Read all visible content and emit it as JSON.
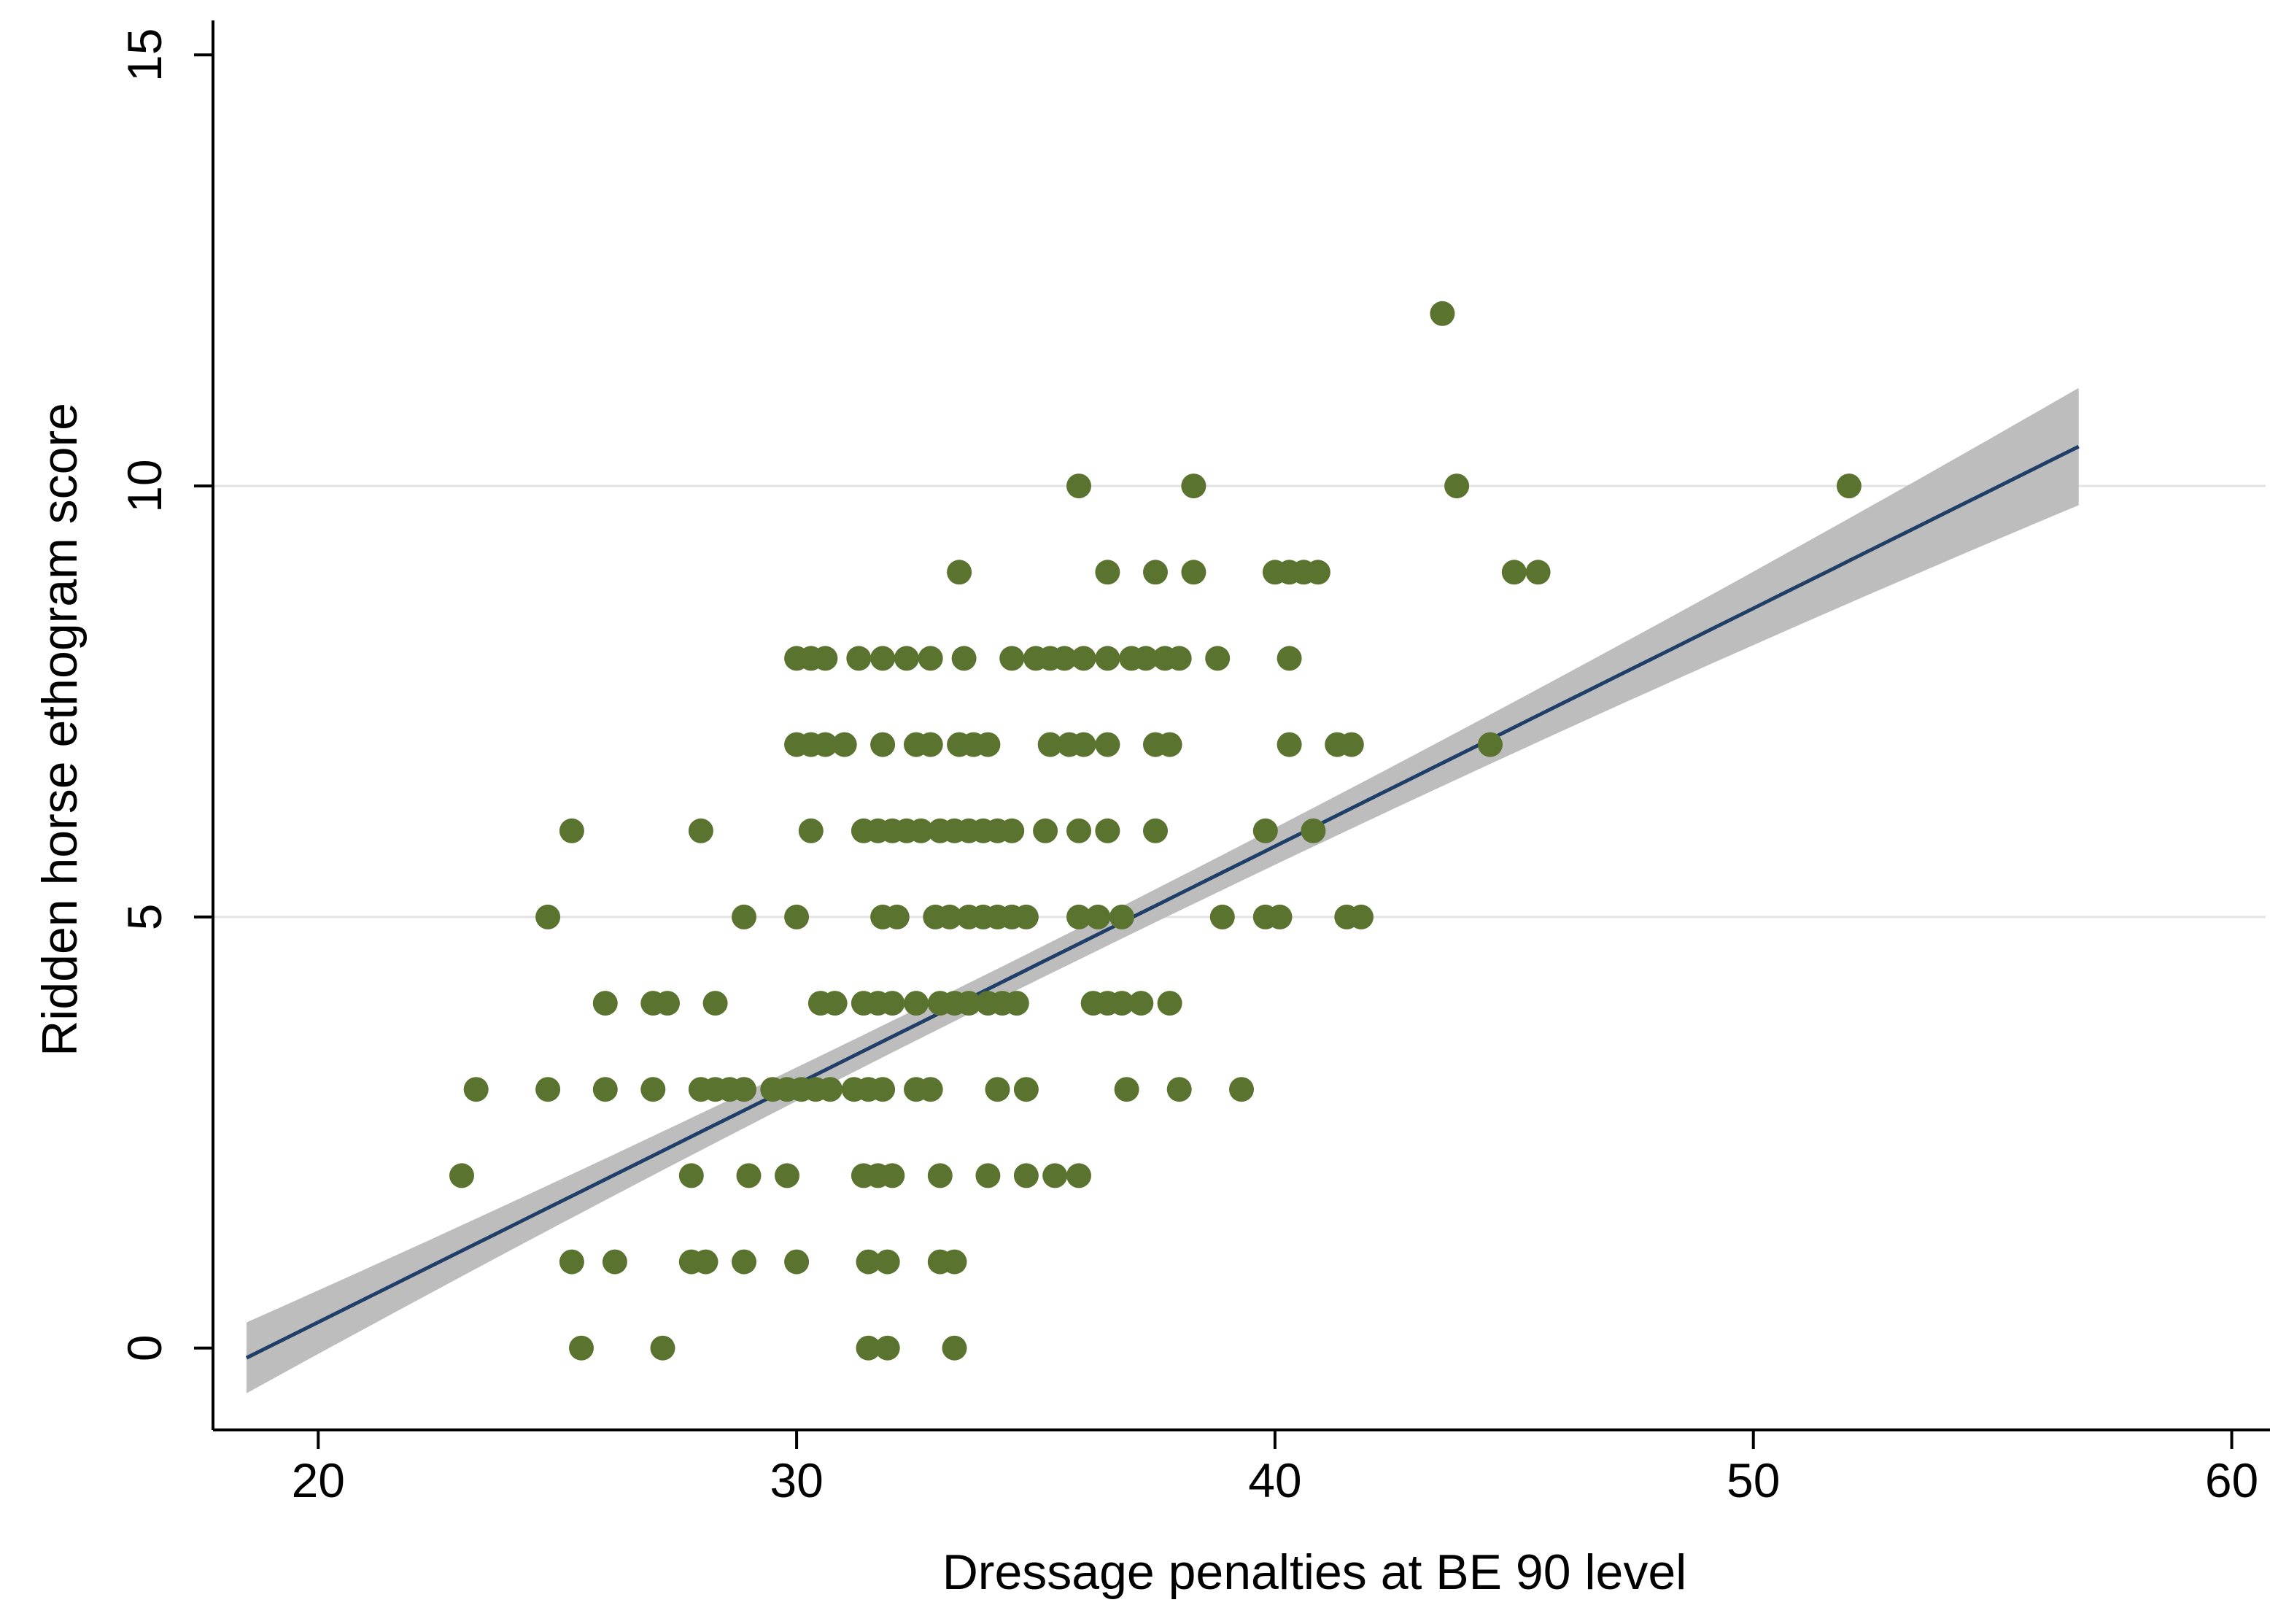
{
  "chart_data": {
    "type": "scatter",
    "title": "",
    "xlabel": "Dressage penalties at BE 90 level",
    "ylabel": "Ridden horse ethogram score",
    "xlim": [
      17.8,
      60.8
    ],
    "ylim": [
      -0.95,
      15.4
    ],
    "xticks": [
      20,
      30,
      40,
      50,
      60
    ],
    "yticks": [
      0,
      5,
      10,
      15
    ],
    "ygrid": [
      5,
      10
    ],
    "grid": true,
    "legend": "none",
    "colors": {
      "points": "#5a7430",
      "fit_line": "#1f3f68",
      "confidence_band": "#bdbdbd",
      "grid": "#e3e3e3",
      "axis": "#000000"
    },
    "fit": {
      "type": "linear",
      "x_range": [
        18.5,
        56.8
      ],
      "intercept": -5.22,
      "slope": 0.276,
      "ci_halfwidth_at_ends": 0.68,
      "ci_halfwidth_at_center": 0.18,
      "ci_center_x": 34
    },
    "points": [
      {
        "x": 25.5,
        "y": 0
      },
      {
        "x": 27.2,
        "y": 0
      },
      {
        "x": 31.5,
        "y": 0
      },
      {
        "x": 31.9,
        "y": 0
      },
      {
        "x": 33.3,
        "y": 0
      },
      {
        "x": 25.3,
        "y": 1
      },
      {
        "x": 26.2,
        "y": 1
      },
      {
        "x": 27.8,
        "y": 1
      },
      {
        "x": 28.1,
        "y": 1
      },
      {
        "x": 28.9,
        "y": 1
      },
      {
        "x": 30.0,
        "y": 1
      },
      {
        "x": 31.5,
        "y": 1
      },
      {
        "x": 31.9,
        "y": 1
      },
      {
        "x": 33.0,
        "y": 1
      },
      {
        "x": 33.3,
        "y": 1
      },
      {
        "x": 23.0,
        "y": 2
      },
      {
        "x": 27.8,
        "y": 2
      },
      {
        "x": 29.0,
        "y": 2
      },
      {
        "x": 29.8,
        "y": 2
      },
      {
        "x": 31.4,
        "y": 2
      },
      {
        "x": 31.7,
        "y": 2
      },
      {
        "x": 32.0,
        "y": 2
      },
      {
        "x": 33.0,
        "y": 2
      },
      {
        "x": 34.0,
        "y": 2
      },
      {
        "x": 34.8,
        "y": 2
      },
      {
        "x": 35.4,
        "y": 2
      },
      {
        "x": 35.9,
        "y": 2
      },
      {
        "x": 23.3,
        "y": 3
      },
      {
        "x": 24.8,
        "y": 3
      },
      {
        "x": 26.0,
        "y": 3
      },
      {
        "x": 27.0,
        "y": 3
      },
      {
        "x": 28.0,
        "y": 3
      },
      {
        "x": 28.3,
        "y": 3
      },
      {
        "x": 28.6,
        "y": 3
      },
      {
        "x": 28.9,
        "y": 3
      },
      {
        "x": 29.5,
        "y": 3
      },
      {
        "x": 29.8,
        "y": 3
      },
      {
        "x": 30.1,
        "y": 3
      },
      {
        "x": 30.4,
        "y": 3
      },
      {
        "x": 30.7,
        "y": 3
      },
      {
        "x": 31.2,
        "y": 3
      },
      {
        "x": 31.5,
        "y": 3
      },
      {
        "x": 31.8,
        "y": 3
      },
      {
        "x": 32.5,
        "y": 3
      },
      {
        "x": 32.8,
        "y": 3
      },
      {
        "x": 34.2,
        "y": 3
      },
      {
        "x": 34.8,
        "y": 3
      },
      {
        "x": 36.9,
        "y": 3
      },
      {
        "x": 38.0,
        "y": 3
      },
      {
        "x": 39.3,
        "y": 3
      },
      {
        "x": 26.0,
        "y": 4
      },
      {
        "x": 27.0,
        "y": 4
      },
      {
        "x": 27.3,
        "y": 4
      },
      {
        "x": 28.3,
        "y": 4
      },
      {
        "x": 30.5,
        "y": 4
      },
      {
        "x": 30.8,
        "y": 4
      },
      {
        "x": 31.4,
        "y": 4
      },
      {
        "x": 31.7,
        "y": 4
      },
      {
        "x": 32.0,
        "y": 4
      },
      {
        "x": 32.5,
        "y": 4
      },
      {
        "x": 33.0,
        "y": 4
      },
      {
        "x": 33.3,
        "y": 4
      },
      {
        "x": 33.6,
        "y": 4
      },
      {
        "x": 34.0,
        "y": 4
      },
      {
        "x": 34.3,
        "y": 4
      },
      {
        "x": 34.6,
        "y": 4
      },
      {
        "x": 36.2,
        "y": 4
      },
      {
        "x": 36.5,
        "y": 4
      },
      {
        "x": 36.8,
        "y": 4
      },
      {
        "x": 37.2,
        "y": 4
      },
      {
        "x": 37.8,
        "y": 4
      },
      {
        "x": 24.8,
        "y": 5
      },
      {
        "x": 28.9,
        "y": 5
      },
      {
        "x": 30.0,
        "y": 5
      },
      {
        "x": 31.8,
        "y": 5
      },
      {
        "x": 32.1,
        "y": 5
      },
      {
        "x": 32.9,
        "y": 5
      },
      {
        "x": 33.2,
        "y": 5
      },
      {
        "x": 33.6,
        "y": 5
      },
      {
        "x": 33.9,
        "y": 5
      },
      {
        "x": 34.2,
        "y": 5
      },
      {
        "x": 34.5,
        "y": 5
      },
      {
        "x": 34.8,
        "y": 5
      },
      {
        "x": 35.9,
        "y": 5
      },
      {
        "x": 36.3,
        "y": 5
      },
      {
        "x": 36.8,
        "y": 5
      },
      {
        "x": 38.9,
        "y": 5
      },
      {
        "x": 39.8,
        "y": 5
      },
      {
        "x": 40.1,
        "y": 5
      },
      {
        "x": 41.5,
        "y": 5
      },
      {
        "x": 41.8,
        "y": 5
      },
      {
        "x": 25.3,
        "y": 6
      },
      {
        "x": 28.0,
        "y": 6
      },
      {
        "x": 30.3,
        "y": 6
      },
      {
        "x": 31.4,
        "y": 6
      },
      {
        "x": 31.7,
        "y": 6
      },
      {
        "x": 32.0,
        "y": 6
      },
      {
        "x": 32.3,
        "y": 6
      },
      {
        "x": 32.6,
        "y": 6
      },
      {
        "x": 33.0,
        "y": 6
      },
      {
        "x": 33.3,
        "y": 6
      },
      {
        "x": 33.6,
        "y": 6
      },
      {
        "x": 33.9,
        "y": 6
      },
      {
        "x": 34.2,
        "y": 6
      },
      {
        "x": 34.5,
        "y": 6
      },
      {
        "x": 35.2,
        "y": 6
      },
      {
        "x": 35.9,
        "y": 6
      },
      {
        "x": 36.5,
        "y": 6
      },
      {
        "x": 37.5,
        "y": 6
      },
      {
        "x": 39.8,
        "y": 6
      },
      {
        "x": 40.8,
        "y": 6
      },
      {
        "x": 30.0,
        "y": 7
      },
      {
        "x": 30.3,
        "y": 7
      },
      {
        "x": 30.6,
        "y": 7
      },
      {
        "x": 31.0,
        "y": 7
      },
      {
        "x": 31.8,
        "y": 7
      },
      {
        "x": 32.5,
        "y": 7
      },
      {
        "x": 32.8,
        "y": 7
      },
      {
        "x": 33.4,
        "y": 7
      },
      {
        "x": 33.7,
        "y": 7
      },
      {
        "x": 34.0,
        "y": 7
      },
      {
        "x": 35.3,
        "y": 7
      },
      {
        "x": 35.7,
        "y": 7
      },
      {
        "x": 36.0,
        "y": 7
      },
      {
        "x": 36.5,
        "y": 7
      },
      {
        "x": 37.5,
        "y": 7
      },
      {
        "x": 37.8,
        "y": 7
      },
      {
        "x": 40.3,
        "y": 7
      },
      {
        "x": 41.3,
        "y": 7
      },
      {
        "x": 41.6,
        "y": 7
      },
      {
        "x": 44.5,
        "y": 7
      },
      {
        "x": 30.0,
        "y": 8
      },
      {
        "x": 30.3,
        "y": 8
      },
      {
        "x": 30.6,
        "y": 8
      },
      {
        "x": 31.3,
        "y": 8
      },
      {
        "x": 31.8,
        "y": 8
      },
      {
        "x": 32.3,
        "y": 8
      },
      {
        "x": 32.8,
        "y": 8
      },
      {
        "x": 33.5,
        "y": 8
      },
      {
        "x": 34.5,
        "y": 8
      },
      {
        "x": 35.0,
        "y": 8
      },
      {
        "x": 35.3,
        "y": 8
      },
      {
        "x": 35.6,
        "y": 8
      },
      {
        "x": 36.0,
        "y": 8
      },
      {
        "x": 36.5,
        "y": 8
      },
      {
        "x": 37.0,
        "y": 8
      },
      {
        "x": 37.3,
        "y": 8
      },
      {
        "x": 37.7,
        "y": 8
      },
      {
        "x": 38.0,
        "y": 8
      },
      {
        "x": 38.8,
        "y": 8
      },
      {
        "x": 40.3,
        "y": 8
      },
      {
        "x": 33.4,
        "y": 9
      },
      {
        "x": 36.5,
        "y": 9
      },
      {
        "x": 37.5,
        "y": 9
      },
      {
        "x": 38.3,
        "y": 9
      },
      {
        "x": 40.0,
        "y": 9
      },
      {
        "x": 40.3,
        "y": 9
      },
      {
        "x": 40.6,
        "y": 9
      },
      {
        "x": 40.9,
        "y": 9
      },
      {
        "x": 45.0,
        "y": 9
      },
      {
        "x": 45.5,
        "y": 9
      },
      {
        "x": 35.9,
        "y": 10
      },
      {
        "x": 38.3,
        "y": 10
      },
      {
        "x": 43.8,
        "y": 10
      },
      {
        "x": 52.0,
        "y": 10
      },
      {
        "x": 43.5,
        "y": 12
      }
    ]
  }
}
